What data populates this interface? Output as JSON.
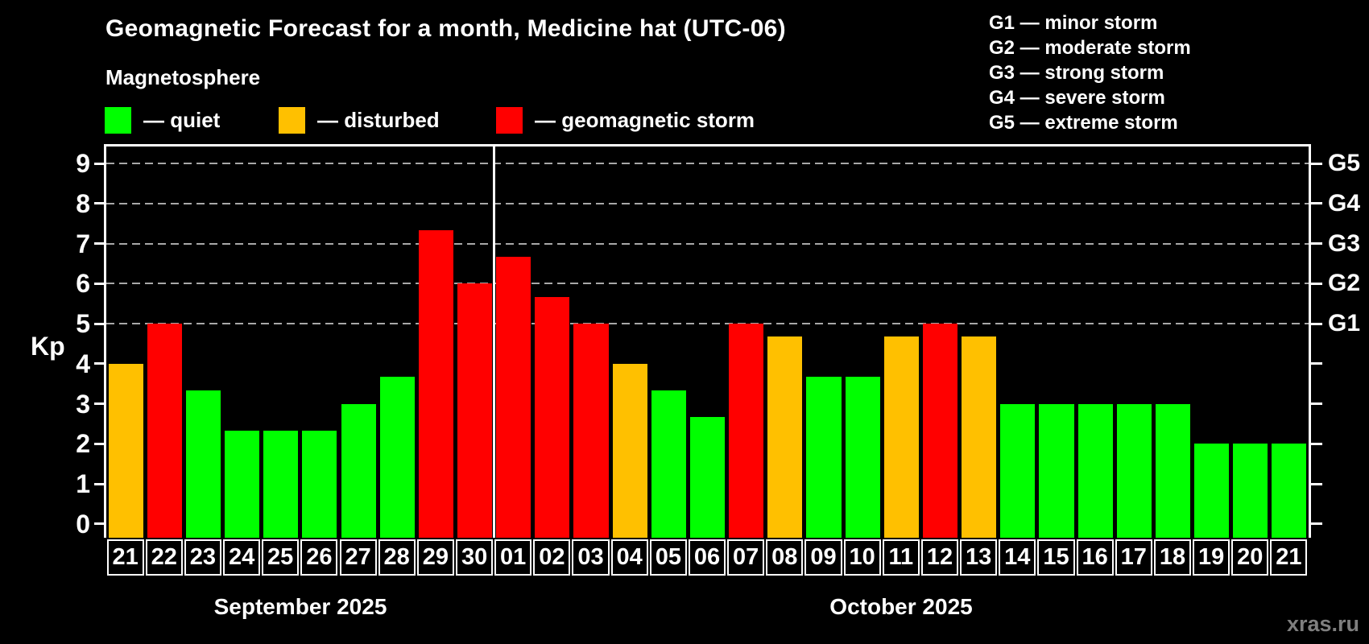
{
  "header": {
    "title": "Geomagnetic Forecast for a month, Medicine hat (UTC-06)",
    "subtitle": "Magnetosphere"
  },
  "legend": {
    "items": [
      {
        "name": "quiet",
        "label": "— quiet",
        "color": "#00ff00"
      },
      {
        "name": "disturbed",
        "label": "— disturbed",
        "color": "#ffc000"
      },
      {
        "name": "storm",
        "label": "— geomagnetic storm",
        "color": "#ff0000"
      }
    ]
  },
  "g_legend": {
    "items": [
      "G1 — minor storm",
      "G2 — moderate storm",
      "G3 — strong storm",
      "G4 — severe storm",
      "G5 — extreme storm"
    ]
  },
  "watermark": "xras.ru",
  "chart_data": {
    "type": "bar",
    "title": "Geomagnetic Forecast for a month, Medicine hat (UTC-06)",
    "subtitle": "Magnetosphere",
    "ylabel": "Kp",
    "ylim": [
      0,
      9
    ],
    "yticks": [
      0,
      1,
      2,
      3,
      4,
      5,
      6,
      7,
      8,
      9
    ],
    "gridlines": [
      5,
      6,
      7,
      8,
      9
    ],
    "grid": "dashed horizontal at storm levels only",
    "legend_position": "top",
    "right_axis": [
      {
        "value": 5,
        "label": "G1"
      },
      {
        "value": 6,
        "label": "G2"
      },
      {
        "value": 7,
        "label": "G3"
      },
      {
        "value": 8,
        "label": "G4"
      },
      {
        "value": 9,
        "label": "G5"
      }
    ],
    "colors": {
      "quiet": "#00ff00",
      "disturbed": "#ffc000",
      "storm": "#ff0000"
    },
    "months": [
      {
        "label": "September 2025",
        "days": 10
      },
      {
        "label": "October 2025",
        "days": 21
      }
    ],
    "bars": [
      {
        "day": "21",
        "value": 4.0,
        "status": "disturbed"
      },
      {
        "day": "22",
        "value": 5.0,
        "status": "storm"
      },
      {
        "day": "23",
        "value": 3.33,
        "status": "quiet"
      },
      {
        "day": "24",
        "value": 2.33,
        "status": "quiet"
      },
      {
        "day": "25",
        "value": 2.33,
        "status": "quiet"
      },
      {
        "day": "26",
        "value": 2.33,
        "status": "quiet"
      },
      {
        "day": "27",
        "value": 3.0,
        "status": "quiet"
      },
      {
        "day": "28",
        "value": 3.67,
        "status": "quiet"
      },
      {
        "day": "29",
        "value": 7.33,
        "status": "storm"
      },
      {
        "day": "30",
        "value": 6.0,
        "status": "storm"
      },
      {
        "day": "01",
        "value": 6.67,
        "status": "storm"
      },
      {
        "day": "02",
        "value": 5.67,
        "status": "storm"
      },
      {
        "day": "03",
        "value": 5.0,
        "status": "storm"
      },
      {
        "day": "04",
        "value": 4.0,
        "status": "disturbed"
      },
      {
        "day": "05",
        "value": 3.33,
        "status": "quiet"
      },
      {
        "day": "06",
        "value": 2.67,
        "status": "quiet"
      },
      {
        "day": "07",
        "value": 5.0,
        "status": "storm"
      },
      {
        "day": "08",
        "value": 4.67,
        "status": "disturbed"
      },
      {
        "day": "09",
        "value": 3.67,
        "status": "quiet"
      },
      {
        "day": "10",
        "value": 3.67,
        "status": "quiet"
      },
      {
        "day": "11",
        "value": 4.67,
        "status": "disturbed"
      },
      {
        "day": "12",
        "value": 5.0,
        "status": "storm"
      },
      {
        "day": "13",
        "value": 4.67,
        "status": "disturbed"
      },
      {
        "day": "14",
        "value": 3.0,
        "status": "quiet"
      },
      {
        "day": "15",
        "value": 3.0,
        "status": "quiet"
      },
      {
        "day": "16",
        "value": 3.0,
        "status": "quiet"
      },
      {
        "day": "17",
        "value": 3.0,
        "status": "quiet"
      },
      {
        "day": "18",
        "value": 3.0,
        "status": "quiet"
      },
      {
        "day": "19",
        "value": 2.0,
        "status": "quiet"
      },
      {
        "day": "20",
        "value": 2.0,
        "status": "quiet"
      },
      {
        "day": "21",
        "value": 2.0,
        "status": "quiet"
      }
    ]
  }
}
